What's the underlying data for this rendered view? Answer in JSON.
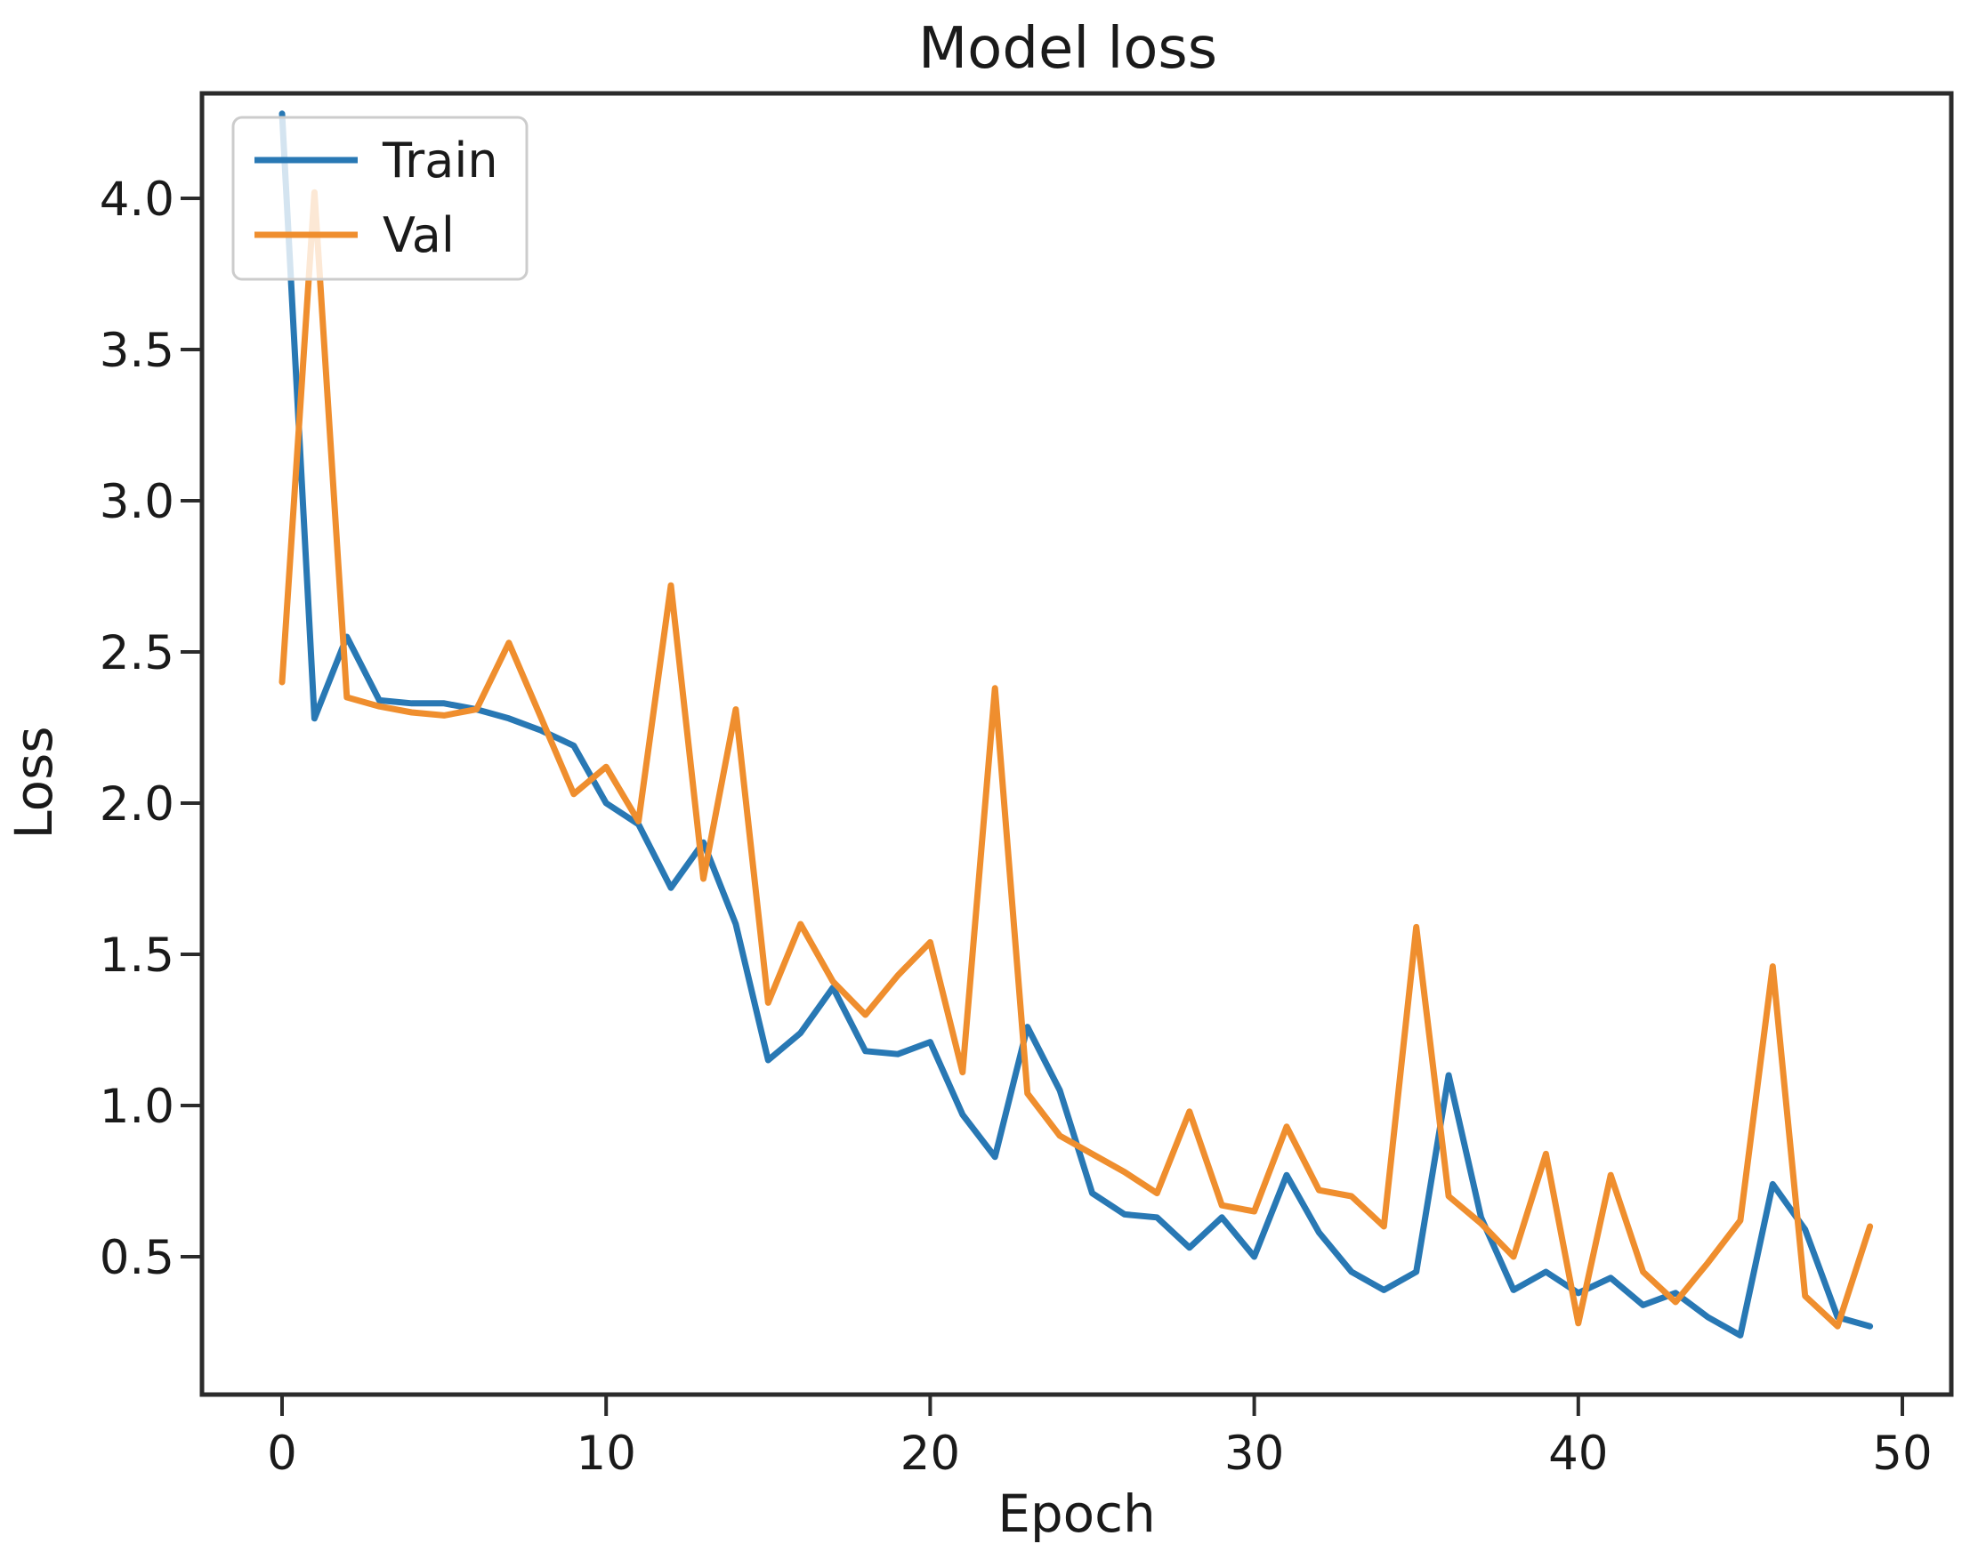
{
  "title": "Model loss",
  "axes": {
    "xlabel": "Epoch",
    "ylabel": "Loss"
  },
  "legend": {
    "entries": [
      {
        "label": "Train",
        "color": "#2878b4"
      },
      {
        "label": "Val",
        "color": "#ef8e2e"
      }
    ],
    "position": "upper left"
  },
  "colors": {
    "train": "#2878b4",
    "val": "#ef8e2e",
    "spine": "#2b2b2b",
    "background": "#ffffff"
  },
  "chart_data": {
    "type": "line",
    "title": "Model loss",
    "xlabel": "Epoch",
    "ylabel": "Loss",
    "x": [
      0,
      1,
      2,
      3,
      4,
      5,
      6,
      7,
      8,
      9,
      10,
      11,
      12,
      13,
      14,
      15,
      16,
      17,
      18,
      19,
      20,
      21,
      22,
      23,
      24,
      25,
      26,
      27,
      28,
      29,
      30,
      31,
      32,
      33,
      34,
      35,
      36,
      37,
      38,
      39,
      40,
      41,
      42,
      43,
      44,
      45,
      46,
      47,
      48,
      49
    ],
    "series": [
      {
        "name": "Train",
        "color": "#2878b4",
        "values": [
          4.28,
          2.28,
          2.55,
          2.34,
          2.33,
          2.33,
          2.31,
          2.28,
          2.24,
          2.19,
          2.0,
          1.93,
          1.72,
          1.87,
          1.6,
          1.15,
          1.24,
          1.39,
          1.18,
          1.17,
          1.21,
          0.97,
          0.83,
          1.26,
          1.05,
          0.71,
          0.64,
          0.63,
          0.53,
          0.63,
          0.5,
          0.77,
          0.58,
          0.45,
          0.39,
          0.45,
          1.1,
          0.63,
          0.39,
          0.45,
          0.38,
          0.43,
          0.34,
          0.38,
          0.3,
          0.24,
          0.74,
          0.59,
          0.3,
          0.27
        ]
      },
      {
        "name": "Val",
        "color": "#ef8e2e",
        "values": [
          2.4,
          4.02,
          2.35,
          2.32,
          2.3,
          2.29,
          2.31,
          2.53,
          2.28,
          2.03,
          2.12,
          1.94,
          2.72,
          1.75,
          2.31,
          1.34,
          1.6,
          1.41,
          1.3,
          1.43,
          1.54,
          1.11,
          2.38,
          1.04,
          0.9,
          0.84,
          0.78,
          0.71,
          0.98,
          0.67,
          0.65,
          0.93,
          0.72,
          0.7,
          0.6,
          1.59,
          0.7,
          0.61,
          0.5,
          0.84,
          0.28,
          0.77,
          0.45,
          0.35,
          0.48,
          0.62,
          1.46,
          0.37,
          0.27,
          0.6
        ]
      }
    ],
    "x_ticks": [
      0,
      10,
      20,
      30,
      40,
      50
    ],
    "y_ticks": [
      "0.5",
      "1.0",
      "1.5",
      "2.0",
      "2.5",
      "3.0",
      "3.5",
      "4.0"
    ],
    "xlim": [
      -2.47,
      51.45
    ],
    "ylim": [
      0.04,
      4.35
    ],
    "grid": false,
    "legend_position": "upper left"
  }
}
